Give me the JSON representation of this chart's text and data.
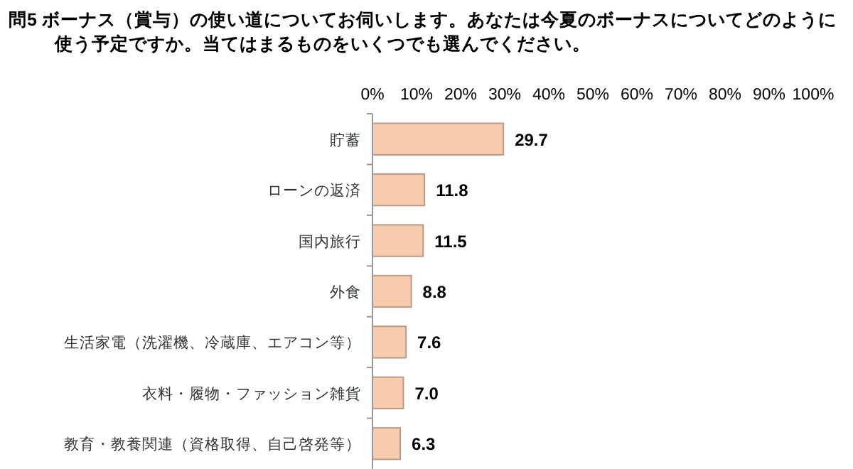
{
  "chart_data": {
    "type": "bar",
    "orientation": "horizontal",
    "title": "問5  ボーナス（賞与）の使い道についてお伺いします。あなたは今夏のボーナスについてどのように使う予定ですか。当てはまるものをいくつでも選んでください。",
    "categories": [
      "貯蓄",
      "ローンの返済",
      "国内旅行",
      "外食",
      "生活家電（洗濯機、冷蔵庫、エアコン等）",
      "衣料・履物・ファッション雑貨",
      "教育・教養関連（資格取得、自己啓発等）"
    ],
    "values": [
      29.7,
      11.8,
      11.5,
      8.8,
      7.6,
      7.0,
      6.3
    ],
    "value_labels": [
      "29.7",
      "11.8",
      "11.5",
      "8.8",
      "7.6",
      "7.0",
      "6.3"
    ],
    "color": "#f8cbad",
    "xlim": [
      0,
      100
    ],
    "xticks": [
      {
        "value": 0,
        "label": "0%"
      },
      {
        "value": 10,
        "label": "10%"
      },
      {
        "value": 20,
        "label": "20%"
      },
      {
        "value": 30,
        "label": "30%"
      },
      {
        "value": 40,
        "label": "40%"
      },
      {
        "value": 50,
        "label": "50%"
      },
      {
        "value": 60,
        "label": "60%"
      },
      {
        "value": 70,
        "label": "70%"
      },
      {
        "value": 80,
        "label": "80%"
      },
      {
        "value": 90,
        "label": "90%"
      },
      {
        "value": 100,
        "label": "100%"
      }
    ]
  }
}
